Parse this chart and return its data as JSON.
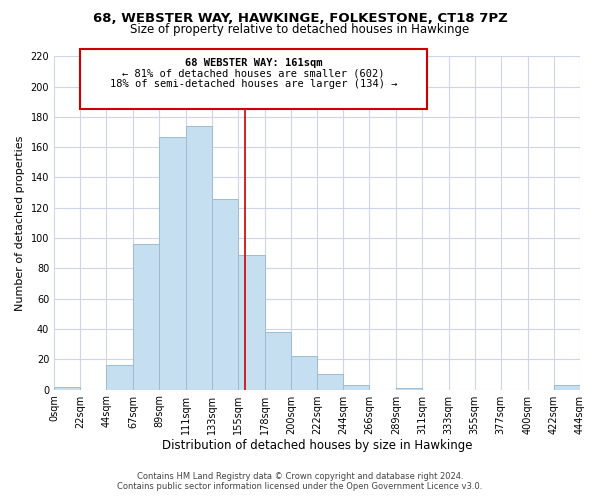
{
  "title": "68, WEBSTER WAY, HAWKINGE, FOLKESTONE, CT18 7PZ",
  "subtitle": "Size of property relative to detached houses in Hawkinge",
  "xlabel": "Distribution of detached houses by size in Hawkinge",
  "ylabel": "Number of detached properties",
  "bin_edges": [
    0,
    22,
    44,
    67,
    89,
    111,
    133,
    155,
    178,
    200,
    222,
    244,
    266,
    289,
    311,
    333,
    355,
    377,
    400,
    422,
    444
  ],
  "bin_labels": [
    "0sqm",
    "22sqm",
    "44sqm",
    "67sqm",
    "89sqm",
    "111sqm",
    "133sqm",
    "155sqm",
    "178sqm",
    "200sqm",
    "222sqm",
    "244sqm",
    "266sqm",
    "289sqm",
    "311sqm",
    "333sqm",
    "355sqm",
    "377sqm",
    "400sqm",
    "422sqm",
    "444sqm"
  ],
  "counts": [
    2,
    0,
    16,
    96,
    167,
    174,
    126,
    89,
    38,
    22,
    10,
    3,
    0,
    1,
    0,
    0,
    0,
    0,
    0,
    3
  ],
  "bar_color": "#c6dff0",
  "bar_edge_color": "#9bbdd4",
  "reference_line_x": 161,
  "reference_line_color": "#cc0000",
  "annotation_title": "68 WEBSTER WAY: 161sqm",
  "annotation_line1": "← 81% of detached houses are smaller (602)",
  "annotation_line2": "18% of semi-detached houses are larger (134) →",
  "annotation_box_color": "#ffffff",
  "annotation_box_edge_color": "#cc0000",
  "ylim": [
    0,
    220
  ],
  "yticks": [
    0,
    20,
    40,
    60,
    80,
    100,
    120,
    140,
    160,
    180,
    200,
    220
  ],
  "footer_line1": "Contains HM Land Registry data © Crown copyright and database right 2024.",
  "footer_line2": "Contains public sector information licensed under the Open Government Licence v3.0.",
  "bg_color": "#ffffff",
  "grid_color": "#ccd6e8"
}
